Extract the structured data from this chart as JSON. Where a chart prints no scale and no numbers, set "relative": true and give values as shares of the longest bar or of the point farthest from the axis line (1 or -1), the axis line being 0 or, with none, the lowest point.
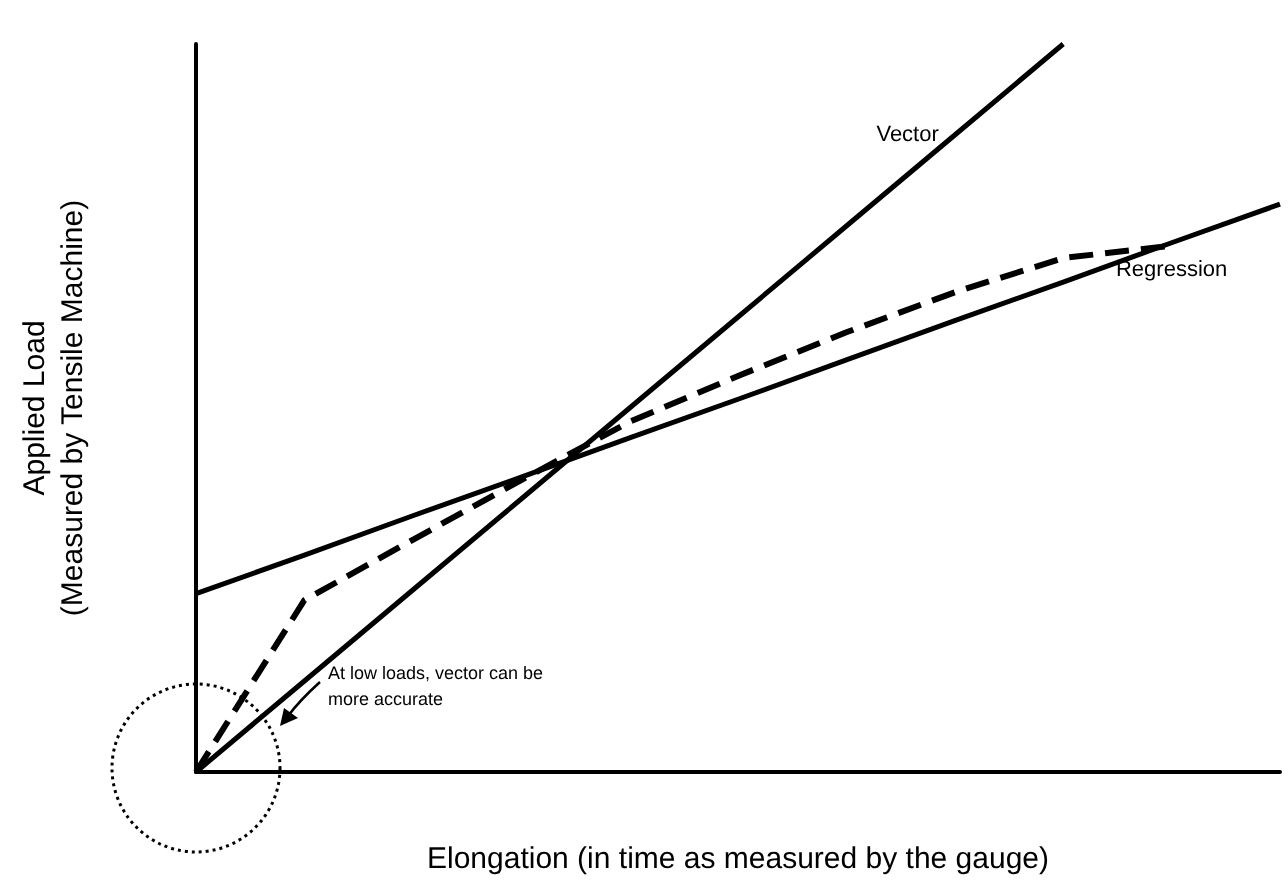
{
  "chart_data": {
    "type": "line",
    "relative": true,
    "xlabel": "Elongation (in time as measured by the gauge)",
    "ylabel": "Applied Load\n(Measured by Tensile Machine)",
    "categories": [
      null,
      null,
      null,
      null,
      null,
      null,
      null,
      null,
      null,
      null,
      null
    ],
    "series": [
      {
        "name": "Vector",
        "color": "#000000",
        "line_style": "solid",
        "values": [
          0,
          0.125,
          0.25,
          0.375,
          0.5,
          0.625,
          0.75,
          0.875,
          1.0,
          null,
          null
        ]
      },
      {
        "name": "Regression",
        "color": "#000000",
        "line_style": "solid",
        "values": [
          0.245,
          0.298,
          0.352,
          0.405,
          0.459,
          0.512,
          0.566,
          0.62,
          0.673,
          0.727,
          0.78
        ]
      },
      {
        "color": "#000000",
        "line_style": "dashed",
        "values": [
          0,
          0.236,
          0.319,
          0.401,
          0.481,
          0.544,
          0.604,
          0.659,
          0.706,
          0.723,
          null
        ]
      }
    ],
    "annotations": [
      "At low loads, vector can be more accurate"
    ],
    "marker": "none",
    "legend": false,
    "grid": false,
    "tick_labels": false
  }
}
